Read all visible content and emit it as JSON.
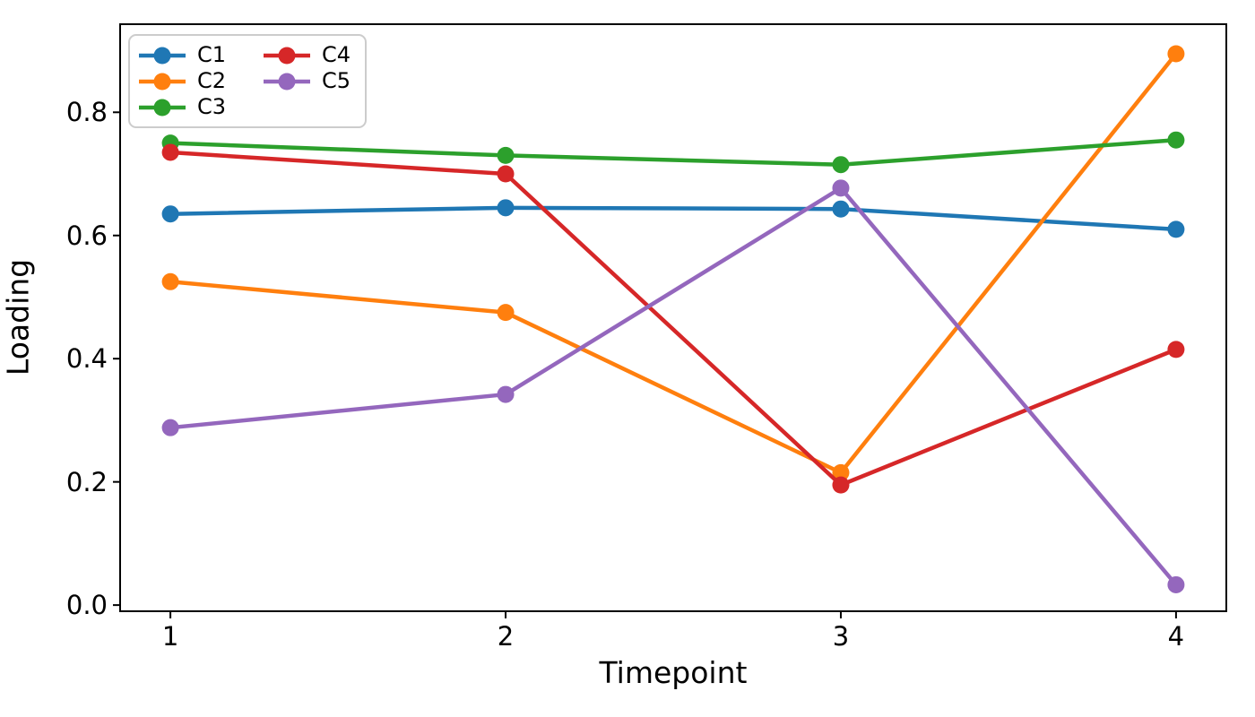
{
  "chart_data": {
    "type": "line",
    "title": "",
    "xlabel": "Timepoint",
    "ylabel": "Loading",
    "x": [
      1,
      2,
      3,
      4
    ],
    "x_tick_labels": [
      "1",
      "2",
      "3",
      "4"
    ],
    "y_ticks": [
      0.0,
      0.2,
      0.4,
      0.6,
      0.8
    ],
    "y_tick_labels": [
      "0.0",
      "0.2",
      "0.4",
      "0.6",
      "0.8"
    ],
    "xlim": [
      0.85,
      4.15
    ],
    "ylim": [
      -0.01,
      0.943
    ],
    "grid": false,
    "legend_position": "upper-left",
    "legend_columns": 2,
    "series": [
      {
        "name": "C1",
        "color": "#1f77b4",
        "values": [
          0.635,
          0.645,
          0.643,
          0.61
        ]
      },
      {
        "name": "C2",
        "color": "#ff7f0e",
        "values": [
          0.525,
          0.475,
          0.215,
          0.895
        ]
      },
      {
        "name": "C3",
        "color": "#2ca02c",
        "values": [
          0.75,
          0.73,
          0.715,
          0.755
        ]
      },
      {
        "name": "C4",
        "color": "#d62728",
        "values": [
          0.735,
          0.7,
          0.195,
          0.415
        ]
      },
      {
        "name": "C5",
        "color": "#9467bd",
        "values": [
          0.288,
          0.342,
          0.677,
          0.033
        ]
      }
    ],
    "marker": "circle",
    "spine_color": "#000000",
    "background_color": "#ffffff"
  }
}
